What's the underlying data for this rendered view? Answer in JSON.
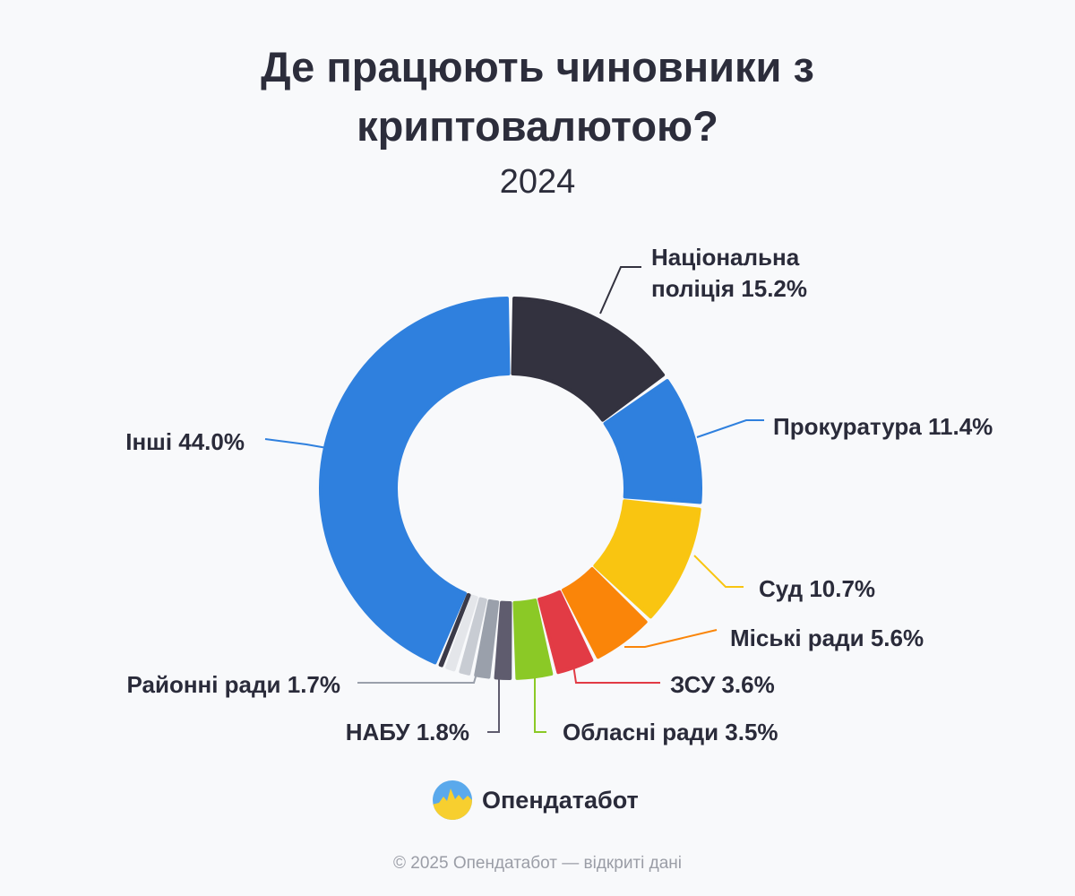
{
  "title_line1": "Де працюють чиновники з",
  "title_line2": "криптовалютою?",
  "subtitle": "2024",
  "brand": "Опендатабот",
  "footer": "© 2025 Опендатабот — відкриті дані",
  "chart_data": {
    "type": "pie",
    "donut": true,
    "title": "Де працюють чиновники з криптовалютою?",
    "subtitle": "2024",
    "unit": "%",
    "legend": "none",
    "slices": [
      {
        "label": "Національна поліція",
        "value": 15.2,
        "color": "#33323f",
        "label_lines": [
          "Національна",
          "поліція 15.2%"
        ]
      },
      {
        "label": "Прокуратура",
        "value": 11.4,
        "color": "#2f80de",
        "label_lines": [
          "Прокуратура 11.4%"
        ]
      },
      {
        "label": "Суд",
        "value": 10.7,
        "color": "#f9c511",
        "label_lines": [
          "Суд 10.7%"
        ]
      },
      {
        "label": "Міські ради",
        "value": 5.6,
        "color": "#fa8509",
        "label_lines": [
          "Міські ради 5.6%"
        ]
      },
      {
        "label": "ЗСУ",
        "value": 3.6,
        "color": "#e23b45",
        "label_lines": [
          "ЗСУ 3.6%"
        ]
      },
      {
        "label": "Обласні ради",
        "value": 3.5,
        "color": "#8bc926",
        "label_lines": [
          "Обласні ради 3.5%"
        ]
      },
      {
        "label": "НАБУ",
        "value": 1.8,
        "color": "#5f5c6e",
        "label_lines": [
          "НАБУ 1.8%"
        ]
      },
      {
        "label": "Районні ради",
        "value": 1.7,
        "color": "#9aa0ab",
        "label_lines": [
          "Районні ради 1.7%"
        ]
      },
      {
        "label": "",
        "value": 1.3,
        "color": "#c8ccd3",
        "label_lines": []
      },
      {
        "label": "",
        "value": 1.2,
        "color": "#e4e6ea",
        "label_lines": []
      },
      {
        "label": "",
        "value": 0.5,
        "color": "#3b3a48",
        "label_lines": []
      },
      {
        "label": "Інші",
        "value": 44.0,
        "color": "#2f80de",
        "label_lines": [
          "Інші 44.0%"
        ]
      }
    ]
  }
}
